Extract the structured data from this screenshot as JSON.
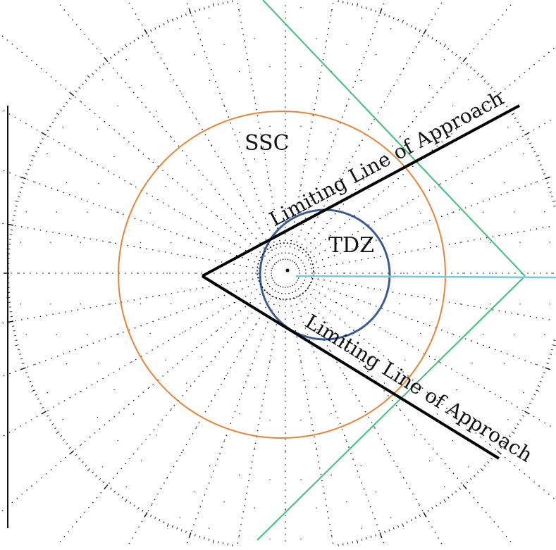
{
  "labels": {
    "ssc": "SSC",
    "tdz": "TDZ",
    "limiting_line_upper": "Limiting Line of Approach",
    "limiting_line_lower": "Limiting Line of Approach"
  },
  "colors": {
    "ssc_circle": "#e8843a",
    "tdz_circle": "#3b5b95",
    "tangent_lines": "#3fbf7a",
    "bearing_line": "#7fc6d8",
    "limiting_lines": "#000000",
    "plot_dots": "#111111"
  }
}
